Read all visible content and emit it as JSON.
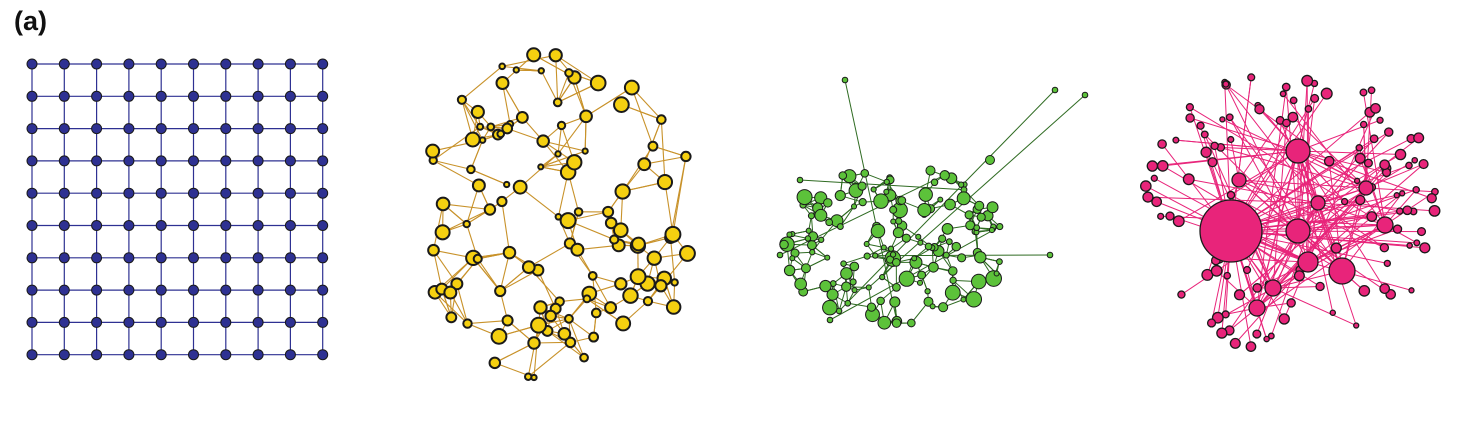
{
  "panel_label": "(a)",
  "networks": [
    {
      "name": "lattice-network",
      "node_color": "#2e3192",
      "edge_color": "#2e3192"
    },
    {
      "name": "random-network",
      "node_color": "#f5d010",
      "edge_color": "#c8922a"
    },
    {
      "name": "small-world-network",
      "node_color": "#5cc23a",
      "edge_color": "#2f6b22"
    },
    {
      "name": "scale-free-network",
      "node_color": "#e8247a",
      "edge_color": "#e8247a"
    }
  ],
  "node_outline_color": "#1a1a1a"
}
